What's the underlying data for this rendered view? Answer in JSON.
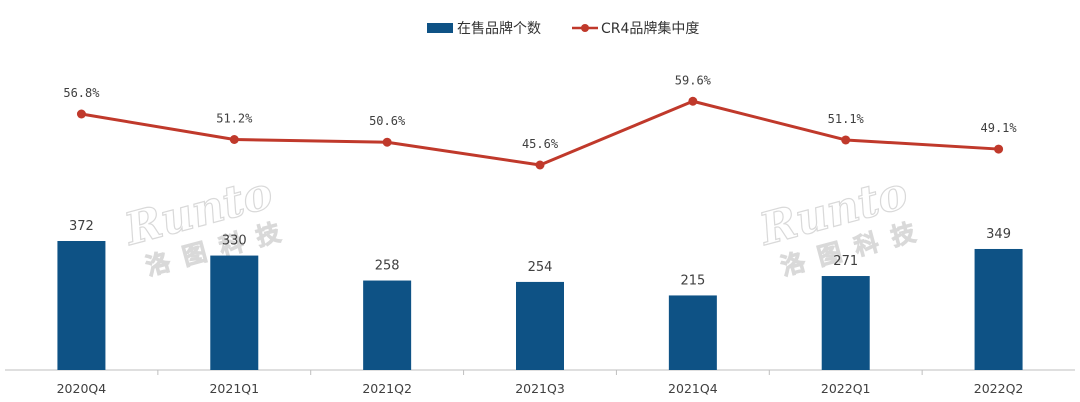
{
  "chart_data": {
    "type": "bar",
    "categories": [
      "2020Q4",
      "2021Q1",
      "2021Q2",
      "2021Q3",
      "2021Q4",
      "2022Q1",
      "2022Q2"
    ],
    "series": [
      {
        "name": "在售品牌个数",
        "type": "bar",
        "values": [
          372,
          330,
          258,
          254,
          215,
          271,
          349
        ],
        "labels": [
          "372",
          "330",
          "258",
          "254",
          "215",
          "271",
          "349"
        ],
        "color": "#0e5285"
      },
      {
        "name": "CR4品牌集中度",
        "type": "line",
        "values": [
          56.8,
          51.2,
          50.6,
          45.6,
          59.6,
          51.1,
          49.1
        ],
        "labels": [
          "56.8%",
          "51.2%",
          "50.6%",
          "45.6%",
          "59.6%",
          "51.1%",
          "49.1%"
        ],
        "color": "#c0392b"
      }
    ],
    "legend_position": "top-center",
    "grid": false
  },
  "watermark": {
    "text": "Runto",
    "text_cn": "洛图科技",
    "color": "#d9d9d9"
  }
}
